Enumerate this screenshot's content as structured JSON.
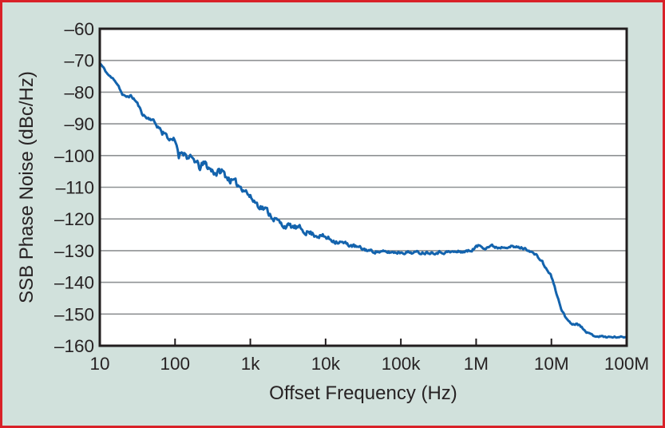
{
  "colors": {
    "background": "#d1e1dc",
    "frame_border": "#d92128",
    "plot_background": "#ffffff",
    "plot_border": "#211d1e",
    "gridline": "#8f9294",
    "curve": "#1363ad",
    "text": "#272223"
  },
  "chart_data": {
    "type": "line",
    "title": "",
    "xlabel": "Offset Frequency (Hz)",
    "ylabel": "SSB Phase Noise (dBc/Hz)",
    "x_scale": "log",
    "xlim_log": [
      1,
      8
    ],
    "ylim": [
      -160,
      -60
    ],
    "grid": "horizontal-only",
    "legend": "none",
    "x_ticks": [
      {
        "log": 1,
        "label": "10"
      },
      {
        "log": 2,
        "label": "100"
      },
      {
        "log": 3,
        "label": "1k"
      },
      {
        "log": 4,
        "label": "10k"
      },
      {
        "log": 5,
        "label": "100k"
      },
      {
        "log": 6,
        "label": "1M"
      },
      {
        "log": 7,
        "label": "10M"
      },
      {
        "log": 8,
        "label": "100M"
      }
    ],
    "y_ticks": [
      {
        "value": -60,
        "label": "–60"
      },
      {
        "value": -70,
        "label": "–70"
      },
      {
        "value": -80,
        "label": "–80"
      },
      {
        "value": -90,
        "label": "–90"
      },
      {
        "value": -100,
        "label": "–100"
      },
      {
        "value": -110,
        "label": "–110"
      },
      {
        "value": -120,
        "label": "–120"
      },
      {
        "value": -130,
        "label": "–130"
      },
      {
        "value": -140,
        "label": "–140"
      },
      {
        "value": -150,
        "label": "–150"
      },
      {
        "value": -160,
        "label": "–160"
      }
    ],
    "noise_seed": 11,
    "series": [
      {
        "name": "SSB phase noise",
        "color": "#1363ad",
        "anchors_logf_db_noise": [
          [
            1.0,
            -70.8,
            0.15
          ],
          [
            1.05,
            -72.4,
            0.25
          ],
          [
            1.1,
            -74.2,
            0.25
          ],
          [
            1.15,
            -75.4,
            0.25
          ],
          [
            1.2,
            -76.2,
            0.3
          ],
          [
            1.25,
            -78.0,
            0.3
          ],
          [
            1.3,
            -80.8,
            0.35
          ],
          [
            1.34,
            -81.6,
            0.4
          ],
          [
            1.4,
            -81.1,
            0.4
          ],
          [
            1.45,
            -82.0,
            0.4
          ],
          [
            1.5,
            -83.6,
            0.4
          ],
          [
            1.56,
            -86.6,
            0.4
          ],
          [
            1.62,
            -88.1,
            0.4
          ],
          [
            1.7,
            -88.6,
            0.4
          ],
          [
            1.75,
            -90.3,
            0.5
          ],
          [
            1.81,
            -91.8,
            0.6
          ],
          [
            1.83,
            -93.2,
            0.7
          ],
          [
            1.86,
            -92.3,
            0.7
          ],
          [
            1.91,
            -94.4,
            0.7
          ],
          [
            1.95,
            -95.6,
            0.7
          ],
          [
            1.98,
            -95.1,
            0.7
          ],
          [
            2.02,
            -96.5,
            0.8
          ],
          [
            2.05,
            -99.8,
            1.0
          ],
          [
            2.1,
            -98.3,
            1.0
          ],
          [
            2.18,
            -101.0,
            1.0
          ],
          [
            2.26,
            -101.4,
            1.0
          ],
          [
            2.32,
            -103.8,
            1.1
          ],
          [
            2.4,
            -102.6,
            1.1
          ],
          [
            2.47,
            -104.4,
            1.0
          ],
          [
            2.55,
            -105.5,
            1.0
          ],
          [
            2.62,
            -104.9,
            1.0
          ],
          [
            2.7,
            -107.0,
            1.0
          ],
          [
            2.78,
            -108.4,
            0.9
          ],
          [
            2.86,
            -109.6,
            0.9
          ],
          [
            2.93,
            -110.7,
            0.9
          ],
          [
            3.0,
            -113.2,
            0.9
          ],
          [
            3.1,
            -115.4,
            0.9
          ],
          [
            3.21,
            -117.2,
            0.9
          ],
          [
            3.31,
            -119.6,
            0.9
          ],
          [
            3.42,
            -121.9,
            0.8
          ],
          [
            3.53,
            -122.4,
            0.8
          ],
          [
            3.63,
            -122.9,
            0.8
          ],
          [
            3.74,
            -123.9,
            0.8
          ],
          [
            3.85,
            -124.9,
            0.7
          ],
          [
            3.95,
            -125.4,
            0.7
          ],
          [
            4.06,
            -126.4,
            0.7
          ],
          [
            4.2,
            -127.4,
            0.6
          ],
          [
            4.35,
            -128.4,
            0.5
          ],
          [
            4.48,
            -129.4,
            0.5
          ],
          [
            4.62,
            -130.2,
            0.4
          ],
          [
            4.8,
            -130.5,
            0.4
          ],
          [
            5.0,
            -130.5,
            0.4
          ],
          [
            5.25,
            -130.6,
            0.4
          ],
          [
            5.5,
            -130.5,
            0.4
          ],
          [
            5.75,
            -130.4,
            0.4
          ],
          [
            5.92,
            -130.1,
            0.4
          ],
          [
            5.99,
            -129.0,
            0.4
          ],
          [
            6.04,
            -128.4,
            0.4
          ],
          [
            6.12,
            -129.0,
            0.4
          ],
          [
            6.2,
            -128.5,
            0.4
          ],
          [
            6.3,
            -129.0,
            0.4
          ],
          [
            6.4,
            -128.5,
            0.4
          ],
          [
            6.5,
            -128.9,
            0.4
          ],
          [
            6.6,
            -129.1,
            0.35
          ],
          [
            6.7,
            -129.8,
            0.3
          ],
          [
            6.8,
            -131.5,
            0.3
          ],
          [
            6.88,
            -133.6,
            0.3
          ],
          [
            6.94,
            -136.2,
            0.3
          ],
          [
            6.99,
            -137.5,
            0.3
          ],
          [
            7.03,
            -140.5,
            0.3
          ],
          [
            7.08,
            -144.5,
            0.3
          ],
          [
            7.13,
            -148.2,
            0.3
          ],
          [
            7.18,
            -150.8,
            0.3
          ],
          [
            7.24,
            -152.4,
            0.3
          ],
          [
            7.29,
            -153.3,
            0.3
          ],
          [
            7.34,
            -152.8,
            0.3
          ],
          [
            7.39,
            -153.9,
            0.3
          ],
          [
            7.44,
            -154.7,
            0.3
          ],
          [
            7.49,
            -156.1,
            0.25
          ],
          [
            7.57,
            -156.8,
            0.25
          ],
          [
            7.68,
            -157.1,
            0.25
          ],
          [
            7.8,
            -157.3,
            0.2
          ],
          [
            7.9,
            -157.2,
            0.2
          ],
          [
            8.0,
            -157.3,
            0.15
          ]
        ]
      }
    ]
  }
}
